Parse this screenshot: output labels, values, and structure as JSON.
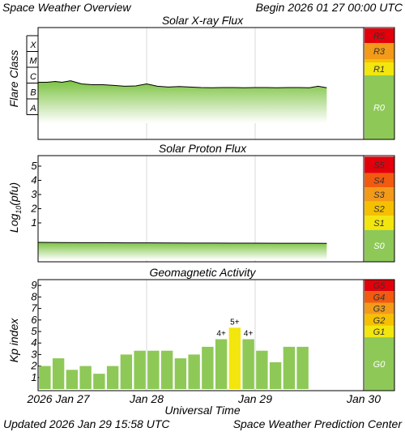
{
  "header": {
    "title": "Space Weather Overview",
    "begin": "Begin 2026 01 27 00:00 UTC"
  },
  "footer": {
    "updated": "Updated 2026 Jan 29 15:58 UTC",
    "center": "Space Weather Prediction Center"
  },
  "xaxis": {
    "label": "Universal Time",
    "ticks": [
      "2026 Jan 27",
      "Jan 28",
      "Jan 29",
      "Jan 30"
    ]
  },
  "colors": {
    "green": "#8ec957",
    "yellow": "#f2e60e",
    "gold": "#f5c000",
    "orange": "#f39a18",
    "red_orange": "#f25a10",
    "red": "#e3000b"
  },
  "chart_data": [
    {
      "type": "area",
      "title": "Solar X-ray Flux",
      "ylabel": "Flare Class",
      "y_ticks": [
        "A",
        "B",
        "C",
        "M",
        "X"
      ],
      "scale_labels": [
        "R5",
        "R3",
        "R1",
        "R0"
      ],
      "x_unit": "days since 2026 Jan 27 00:00 UTC",
      "x": [
        0,
        0.08,
        0.16,
        0.22,
        0.3,
        0.4,
        0.5,
        0.6,
        0.7,
        0.8,
        0.9,
        1.0,
        1.1,
        1.2,
        1.3,
        1.4,
        1.5,
        1.6,
        1.7,
        1.8,
        1.9,
        2.0,
        2.1,
        2.2,
        2.3,
        2.4,
        2.5,
        2.58,
        2.66
      ],
      "values": [
        1.05,
        1.05,
        1.1,
        1.05,
        1.15,
        0.95,
        0.9,
        0.9,
        0.85,
        0.8,
        0.82,
        0.95,
        0.8,
        0.75,
        0.78,
        0.75,
        0.72,
        0.7,
        0.72,
        0.72,
        0.7,
        0.72,
        0.72,
        0.7,
        0.72,
        0.72,
        0.7,
        0.8,
        0.7
      ]
    },
    {
      "type": "area",
      "title": "Solar Proton Flux",
      "ylabel": "Log10(pfu)",
      "ylabel_main": "Log",
      "ylabel_sub": "10",
      "ylabel_rest": "(pfu)",
      "y_ticks": [
        "1",
        "2",
        "3",
        "4",
        "5"
      ],
      "scale_labels": [
        "S5",
        "S4",
        "S3",
        "S2",
        "S1",
        "S0"
      ],
      "x_unit": "days since 2026 Jan 27 00:00 UTC",
      "x": [
        0,
        0.2,
        0.4,
        0.6,
        0.8,
        1.0,
        1.2,
        1.4,
        1.6,
        1.8,
        2.0,
        2.2,
        2.4,
        2.66
      ],
      "values": [
        -0.5,
        -0.55,
        -0.6,
        -0.6,
        -0.65,
        -0.65,
        -0.7,
        -0.72,
        -0.72,
        -0.74,
        -0.75,
        -0.78,
        -0.78,
        -0.8
      ]
    },
    {
      "type": "bar",
      "title": "Geomagnetic Activity",
      "ylabel": "Kp index",
      "ylim": [
        0,
        9
      ],
      "scale_labels": [
        "G5",
        "G4",
        "G3",
        "G2",
        "G1",
        "G0"
      ],
      "values": [
        2.0,
        2.67,
        1.67,
        2.0,
        1.33,
        2.0,
        3.0,
        3.33,
        3.33,
        3.33,
        2.67,
        3.0,
        3.67,
        4.33,
        5.33,
        4.33,
        3.33,
        2.33,
        3.67,
        3.67
      ],
      "annotations": {
        "13": "4+",
        "14": "5+",
        "15": "4+"
      },
      "highlight_index": 14
    }
  ]
}
